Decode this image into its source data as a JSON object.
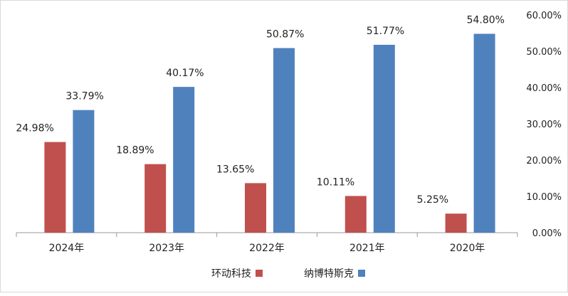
{
  "chart_data": {
    "type": "bar",
    "categories": [
      "2024年",
      "2023年",
      "2022年",
      "2021年",
      "2020年"
    ],
    "series": [
      {
        "name": "环动科技",
        "values": [
          24.98,
          18.89,
          13.65,
          10.11,
          5.25
        ],
        "value_labels": [
          "24.98%",
          "18.89%",
          "13.65%",
          "10.11%",
          "5.25%"
        ],
        "color": "#C0504D"
      },
      {
        "name": "纳博特斯克",
        "values": [
          33.79,
          40.17,
          50.87,
          51.77,
          54.8
        ],
        "value_labels": [
          "33.79%",
          "40.17%",
          "50.87%",
          "51.77%",
          "54.80%"
        ],
        "color": "#4F81BD"
      }
    ],
    "ylim": [
      0,
      60
    ],
    "y_ticks": [
      0,
      10,
      20,
      30,
      40,
      50,
      60
    ],
    "y_tick_labels": [
      "0.00%",
      "10.00%",
      "20.00%",
      "30.00%",
      "40.00%",
      "50.00%",
      "60.00%"
    ],
    "y_axis_side": "right",
    "grid": false,
    "legend_position": "bottom",
    "title": "",
    "xlabel": "",
    "ylabel": ""
  }
}
